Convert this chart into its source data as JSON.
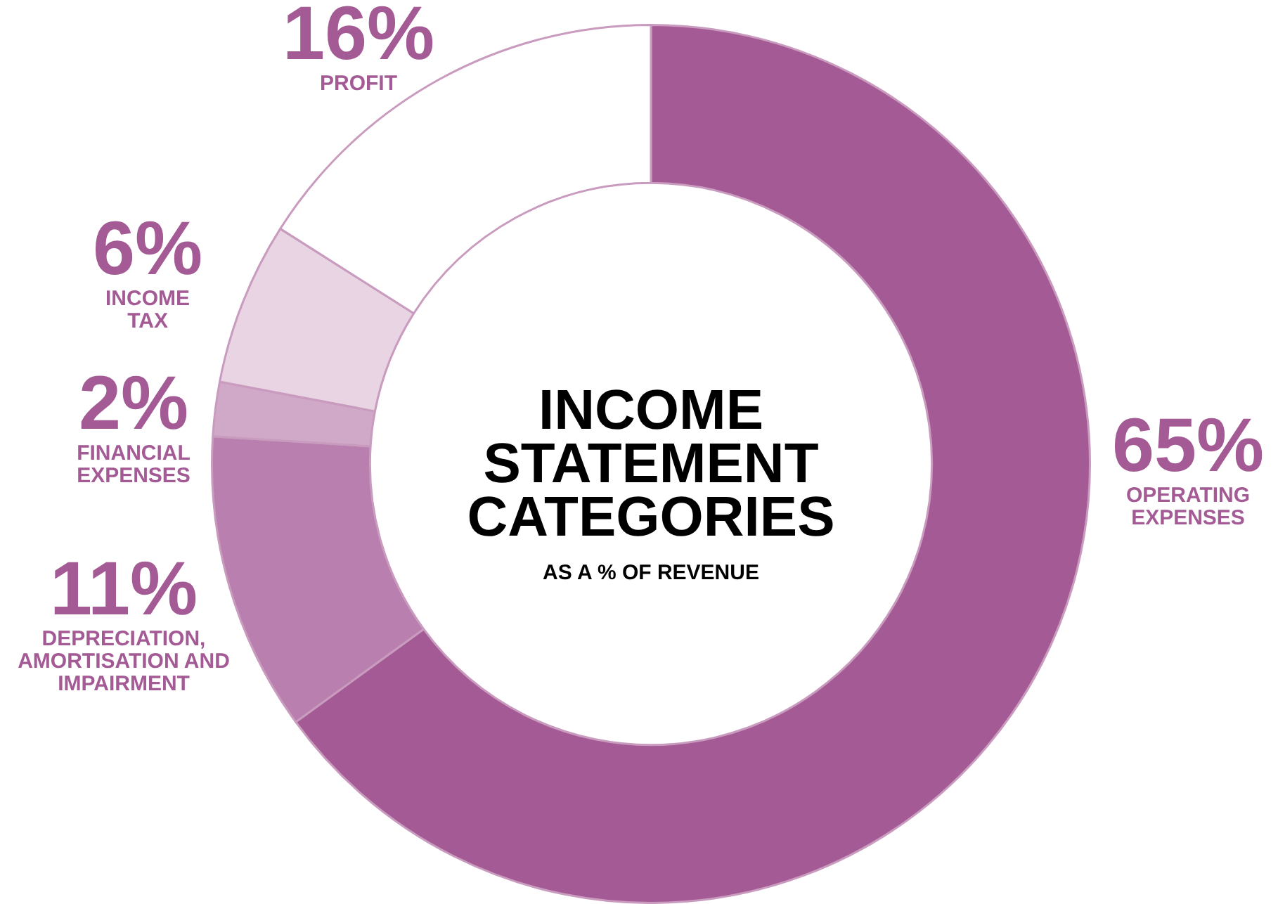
{
  "chart_data": {
    "type": "donut",
    "title": "INCOME STATEMENT CATEGORIES",
    "subtitle": "AS A % OF REVENUE",
    "categories": [
      "OPERATING EXPENSES",
      "DEPRECIATION, AMORTISATION AND IMPAIRMENT",
      "FINANCIAL EXPENSES",
      "INCOME TAX",
      "PROFIT"
    ],
    "values": [
      65,
      11,
      2,
      6,
      16
    ],
    "colors": [
      "#a45a94",
      "#b97fae",
      "#d0a8c8",
      "#e8d4e3",
      "#ffffff"
    ],
    "value_labels": [
      "65%",
      "11%",
      "2%",
      "6%",
      "16%"
    ],
    "legend": false
  }
}
